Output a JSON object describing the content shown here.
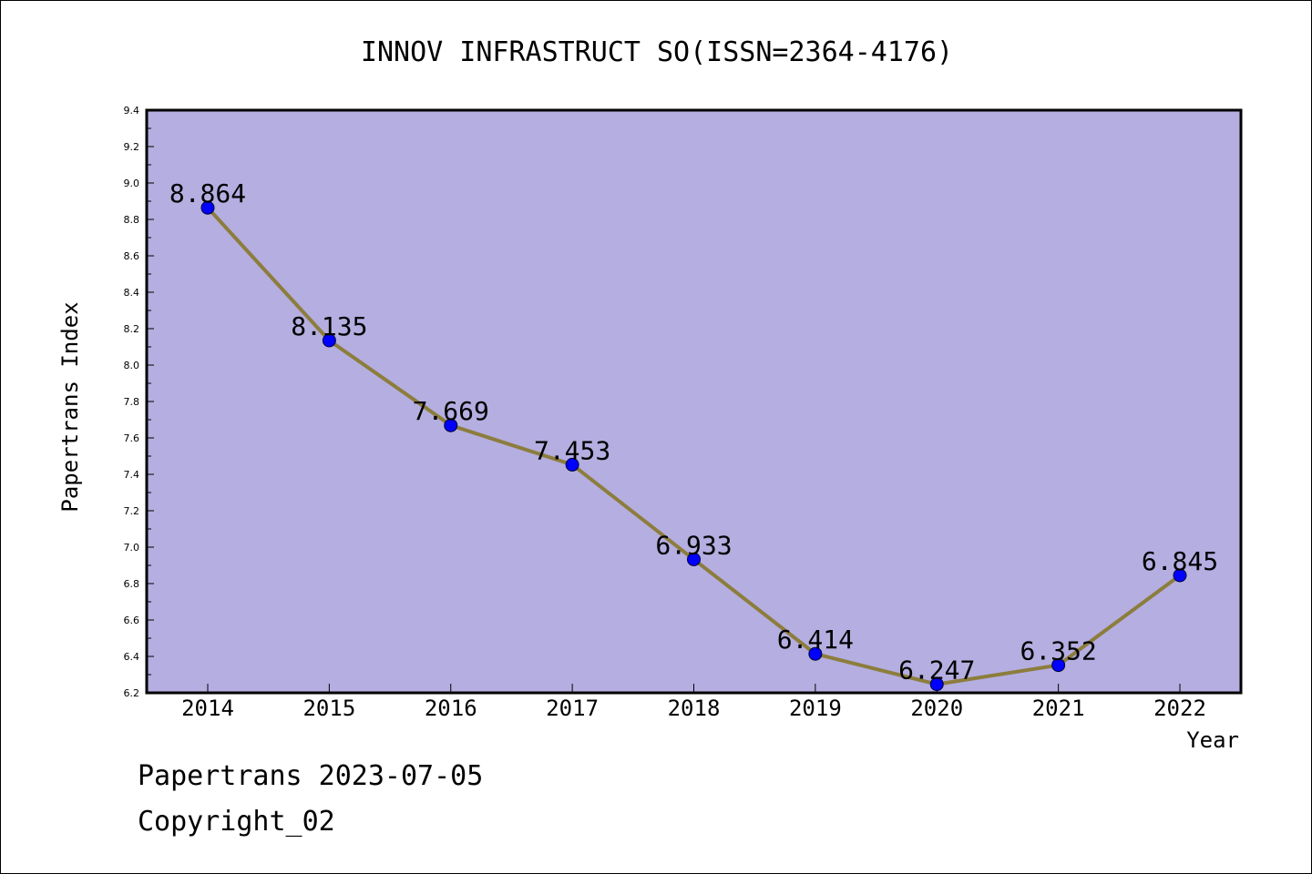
{
  "chart_data": {
    "type": "line",
    "title": "INNOV INFRASTRUCT SO(ISSN=2364-4176)",
    "xlabel": "Year",
    "ylabel": "Papertrans Index",
    "categories": [
      "2014",
      "2015",
      "2016",
      "2017",
      "2018",
      "2019",
      "2020",
      "2021",
      "2022"
    ],
    "series": [
      {
        "values": [
          8.864,
          8.135,
          7.669,
          7.453,
          6.933,
          6.414,
          6.247,
          6.352,
          6.845
        ]
      }
    ],
    "data_labels": [
      "8.864",
      "8.135",
      "7.669",
      "7.453",
      "6.933",
      "6.414",
      "6.247",
      "6.352",
      "6.845"
    ],
    "ylim": [
      6.2,
      9.4
    ],
    "yticks": [
      "6.2",
      "6.4",
      "6.6",
      "6.8",
      "7.0",
      "7.2",
      "7.4",
      "7.6",
      "7.8",
      "8.0",
      "8.2",
      "8.4",
      "8.6",
      "8.8",
      "9.0",
      "9.2",
      "9.4"
    ],
    "colors": {
      "plot_background": "#b4aee1",
      "line": "#8c7d3c",
      "marker": "#0000ff"
    },
    "grid": false
  },
  "footer": {
    "line1": "Papertrans 2023-07-05",
    "line2": "Copyright_02"
  }
}
